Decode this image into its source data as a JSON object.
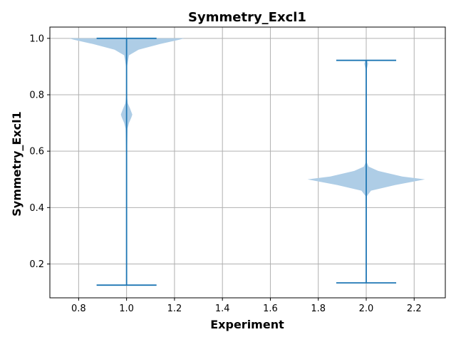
{
  "chart_data": {
    "type": "violin",
    "title": "Symmetry_Excl1",
    "xlabel": "Experiment",
    "ylabel": "Symmetry_Excl1",
    "xlim": [
      0.68,
      2.33
    ],
    "ylim": [
      0.08,
      1.04
    ],
    "xticks": [
      0.8,
      1.0,
      1.2,
      1.4,
      1.6,
      1.8,
      2.0,
      2.2
    ],
    "yticks": [
      0.2,
      0.4,
      0.6,
      0.8,
      1.0
    ],
    "grid": true,
    "colors": {
      "body": "#aecde6",
      "lines": "#1f77b4"
    },
    "violins": [
      {
        "position": 1.0,
        "min": 0.125,
        "max": 1.0,
        "profile": [
          [
            0.125,
            0.0
          ],
          [
            0.27,
            0.002
          ],
          [
            0.3,
            0.0
          ],
          [
            0.6,
            0.002
          ],
          [
            0.68,
            0.004
          ],
          [
            0.7,
            0.01
          ],
          [
            0.72,
            0.02
          ],
          [
            0.73,
            0.024
          ],
          [
            0.75,
            0.015
          ],
          [
            0.77,
            0.005
          ],
          [
            0.8,
            0.001
          ],
          [
            0.9,
            0.002
          ],
          [
            0.94,
            0.01
          ],
          [
            0.96,
            0.05
          ],
          [
            0.98,
            0.14
          ],
          [
            0.995,
            0.22
          ],
          [
            1.0,
            0.24
          ]
        ]
      },
      {
        "position": 2.0,
        "min": 0.133,
        "max": 0.922,
        "profile": [
          [
            0.133,
            0.0
          ],
          [
            0.44,
            0.002
          ],
          [
            0.46,
            0.02
          ],
          [
            0.48,
            0.12
          ],
          [
            0.5,
            0.245
          ],
          [
            0.51,
            0.15
          ],
          [
            0.53,
            0.05
          ],
          [
            0.545,
            0.01
          ],
          [
            0.56,
            0.002
          ],
          [
            0.64,
            0.0
          ],
          [
            0.66,
            0.002
          ],
          [
            0.68,
            0.0
          ],
          [
            0.89,
            0.002
          ],
          [
            0.91,
            0.008
          ],
          [
            0.922,
            0.004
          ]
        ]
      }
    ]
  }
}
